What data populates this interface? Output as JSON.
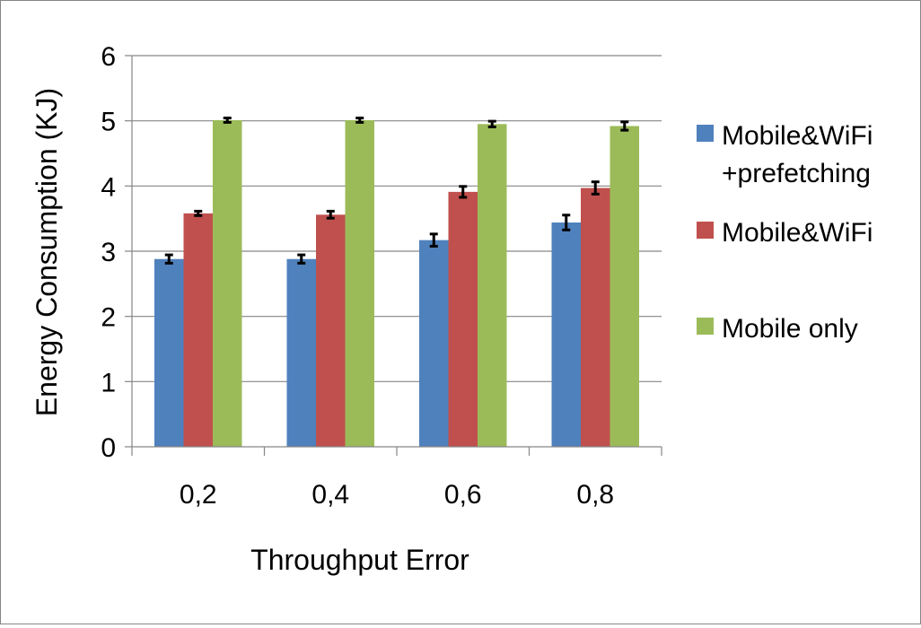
{
  "chart_data": {
    "type": "bar",
    "categories": [
      "0,2",
      "0,4",
      "0,6",
      "0,8"
    ],
    "xlabel": "Throughput Error",
    "ylabel": "Energy Consumption (KJ)",
    "ylim": [
      0,
      6
    ],
    "yticks": [
      "0",
      "1",
      "2",
      "3",
      "4",
      "5",
      "6"
    ],
    "grid": true,
    "legend_position": "right",
    "series": [
      {
        "name": "Mobile&WiFi +prefetching",
        "legend_lines": [
          "Mobile&WiFi",
          "+prefetching"
        ],
        "color": "#4F81BD",
        "values": [
          2.88,
          2.88,
          3.17,
          3.44
        ],
        "errors": [
          0.05,
          0.05,
          0.08,
          0.1
        ]
      },
      {
        "name": "Mobile&WiFi",
        "legend_lines": [
          "Mobile&WiFi"
        ],
        "color": "#C0504D",
        "values": [
          3.58,
          3.56,
          3.91,
          3.97
        ],
        "errors": [
          0.02,
          0.04,
          0.07,
          0.08
        ]
      },
      {
        "name": "Mobile only",
        "legend_lines": [
          "Mobile only"
        ],
        "color": "#9BBB59",
        "values": [
          5.01,
          5.01,
          4.95,
          4.92
        ],
        "errors": [
          0.02,
          0.02,
          0.03,
          0.05
        ]
      }
    ]
  }
}
